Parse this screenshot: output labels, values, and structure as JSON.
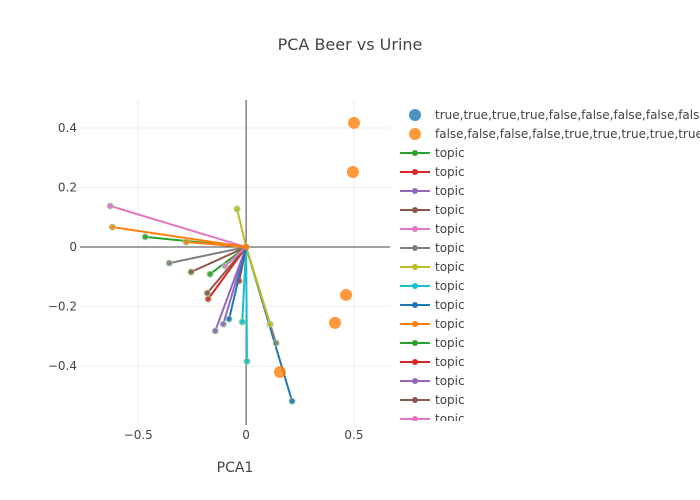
{
  "chart_data": {
    "type": "scatter",
    "title": "PCA Beer vs Urine",
    "xlabel": "PCA1",
    "ylabel": "",
    "xlim": [
      -0.77,
      0.667
    ],
    "ylim": [
      -0.598,
      0.494
    ],
    "xticks": [
      {
        "v": -0.5,
        "label": "−0.5"
      },
      {
        "v": 0,
        "label": "0"
      },
      {
        "v": 0.5,
        "label": "0.5"
      }
    ],
    "yticks": [
      {
        "v": 0.4,
        "label": "0.4"
      },
      {
        "v": 0.2,
        "label": "0.2"
      },
      {
        "v": 0,
        "label": "0"
      },
      {
        "v": -0.2,
        "label": "−0.2"
      },
      {
        "v": -0.4,
        "label": "−0.4"
      }
    ],
    "grid": true,
    "legend_placement": "right",
    "samples": [
      {
        "name": "true,true,true,true,false,false,false,false,false",
        "color": "#1f77b4",
        "points": []
      },
      {
        "name": "false,false,false,false,true,true,true,true,true",
        "color": "#ff7f0e",
        "points": [
          [
            0.5,
            0.417
          ],
          [
            0.495,
            0.252
          ],
          [
            0.463,
            -0.161
          ],
          [
            0.412,
            -0.255
          ],
          [
            0.157,
            -0.42
          ]
        ]
      }
    ],
    "topics": [
      {
        "name": "topic",
        "color": "#2ca02c",
        "end": [
          -0.468,
          0.034
        ]
      },
      {
        "name": "topic",
        "color": "#d62728",
        "end": [
          -0.176,
          -0.175
        ]
      },
      {
        "name": "topic",
        "color": "#9467bd",
        "end": [
          -0.143,
          -0.282
        ]
      },
      {
        "name": "topic",
        "color": "#8c564b",
        "end": [
          -0.255,
          -0.084
        ]
      },
      {
        "name": "topic",
        "color": "#e377c2",
        "end": [
          -0.63,
          0.138
        ]
      },
      {
        "name": "topic",
        "color": "#7f7f7f",
        "end": [
          -0.356,
          -0.054
        ]
      },
      {
        "name": "topic",
        "color": "#bcbd22",
        "end": [
          -0.042,
          0.128
        ]
      },
      {
        "name": "topic",
        "color": "#17becf",
        "end": [
          -0.018,
          -0.252
        ]
      },
      {
        "name": "topic",
        "color": "#1f77b4",
        "end": [
          0.213,
          -0.518
        ]
      },
      {
        "name": "topic",
        "color": "#ff7f0e",
        "end": [
          -0.62,
          0.067
        ]
      },
      {
        "name": "topic",
        "color": "#2ca02c",
        "end": [
          -0.167,
          -0.091
        ]
      },
      {
        "name": "topic",
        "color": "#d62728",
        "end": [
          -0.032,
          -0.114
        ]
      },
      {
        "name": "topic",
        "color": "#9467bd",
        "end": [
          -0.106,
          -0.259
        ]
      },
      {
        "name": "topic",
        "color": "#8c564b",
        "end": [
          -0.18,
          -0.155
        ]
      },
      {
        "name": "topic",
        "color": "#e377c2",
        "end": [
          -0.097,
          -0.064
        ]
      },
      {
        "name": "topic",
        "color": "#7f7f7f",
        "end": [
          0.139,
          -0.323
        ]
      },
      {
        "name": "topic",
        "color": "#bcbd22",
        "end": [
          0.111,
          -0.259
        ]
      },
      {
        "name": "topic",
        "color": "#17becf",
        "end": [
          0.004,
          -0.384
        ]
      },
      {
        "name": "topic",
        "color": "#1f77b4",
        "end": [
          -0.079,
          -0.242
        ]
      },
      {
        "name": "topic",
        "color": "#ff7f0e",
        "end": [
          -0.278,
          0.017
        ]
      }
    ]
  }
}
